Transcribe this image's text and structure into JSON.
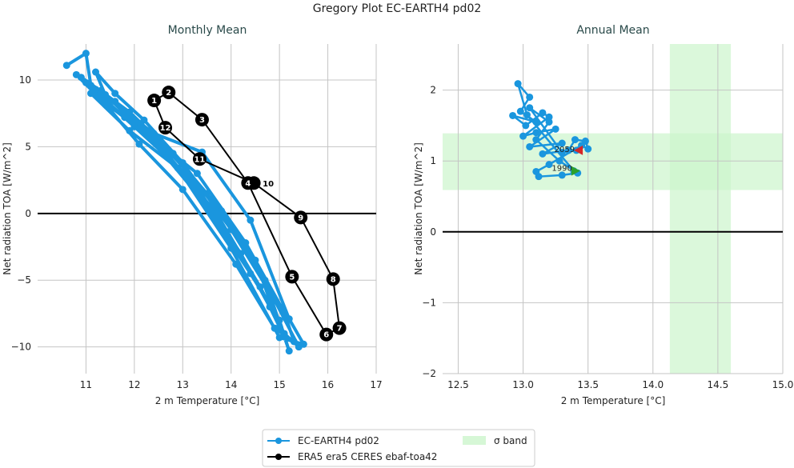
{
  "figure_title": "Gregory Plot EC-EARTH4 pd02",
  "colors": {
    "model": "#1a96de",
    "obs": "#000000",
    "band": "#ccf5cc",
    "start_marker": "#2ca02c",
    "end_marker": "#d62728"
  },
  "legend": {
    "placement": "bottom-center",
    "entries": [
      {
        "label": "EC-EARTH4 pd02",
        "color": "#1a96de"
      },
      {
        "label": "ERA5 era5 CERES ebaf-toa42",
        "color": "#000000"
      },
      {
        "label": "σ band",
        "color": "#ccf5cc"
      }
    ]
  },
  "chart_data": [
    {
      "type": "line",
      "title": "Monthly Mean",
      "xlabel": "2 m Temperature [°C]",
      "ylabel": "Net radiation TOA [W/m^2]",
      "xlim": [
        10.0,
        17.0
      ],
      "ylim": [
        -12.0,
        12.7
      ],
      "xticks": [
        11,
        12,
        13,
        14,
        15,
        16,
        17
      ],
      "yticks": [
        -10,
        -5,
        0,
        5,
        10
      ],
      "grid": true,
      "zero_line": 0,
      "series": [
        {
          "name": "EC-EARTH4 pd02",
          "markers": true,
          "points": [
            [
              10.6,
              11.1
            ],
            [
              11.0,
              12.0
            ],
            [
              11.1,
              9.6
            ],
            [
              11.6,
              8.4
            ],
            [
              12.5,
              5.5
            ],
            [
              13.5,
              1.5
            ],
            [
              14.5,
              -3.5
            ],
            [
              15.0,
              -8.5
            ],
            [
              14.8,
              -7.0
            ],
            [
              14.2,
              -3.0
            ],
            [
              13.2,
              2.5
            ],
            [
              12.0,
              6.5
            ],
            [
              11.3,
              8.8
            ],
            [
              10.9,
              10.2
            ],
            [
              11.3,
              9.2
            ],
            [
              11.9,
              7.6
            ],
            [
              12.8,
              4.5
            ],
            [
              13.8,
              0.2
            ],
            [
              14.7,
              -5.0
            ],
            [
              15.2,
              -10.3
            ],
            [
              15.0,
              -8.0
            ],
            [
              14.4,
              -4.5
            ],
            [
              13.4,
              1.0
            ],
            [
              12.3,
              5.8
            ],
            [
              11.5,
              8.0
            ],
            [
              11.2,
              10.6
            ],
            [
              11.6,
              9.0
            ],
            [
              12.2,
              7.0
            ],
            [
              13.0,
              3.8
            ],
            [
              14.0,
              -1.2
            ],
            [
              14.9,
              -6.5
            ],
            [
              15.4,
              -10.0
            ],
            [
              15.1,
              -9.0
            ],
            [
              14.6,
              -5.5
            ],
            [
              13.7,
              0.0
            ],
            [
              12.6,
              4.8
            ],
            [
              11.8,
              7.2
            ],
            [
              11.0,
              9.8
            ],
            [
              11.4,
              8.9
            ],
            [
              12.0,
              6.8
            ],
            [
              13.3,
              3.0
            ],
            [
              14.3,
              -2.2
            ],
            [
              15.1,
              -7.4
            ],
            [
              15.3,
              -9.6
            ],
            [
              14.9,
              -8.6
            ],
            [
              14.1,
              -3.8
            ],
            [
              13.0,
              1.8
            ],
            [
              12.1,
              5.2
            ],
            [
              11.4,
              8.2
            ],
            [
              10.8,
              10.4
            ],
            [
              11.2,
              9.3
            ],
            [
              12.4,
              6.0
            ],
            [
              13.4,
              4.6
            ],
            [
              14.4,
              -0.5
            ],
            [
              15.2,
              -7.9
            ],
            [
              15.5,
              -9.8
            ],
            [
              15.0,
              -9.3
            ],
            [
              14.0,
              -2.6
            ],
            [
              12.9,
              3.4
            ],
            [
              11.9,
              6.2
            ],
            [
              11.1,
              9.0
            ]
          ]
        },
        {
          "name": "ERA5 era5 CERES ebaf-toa42",
          "markers": true,
          "month_labels": [
            "1",
            "2",
            "3",
            "4",
            "5",
            "6",
            "7",
            "8",
            "9",
            "10",
            "11",
            "12"
          ],
          "points": [
            [
              12.41,
              8.47
            ],
            [
              12.71,
              9.07
            ],
            [
              13.4,
              7.03
            ],
            [
              14.35,
              2.28
            ],
            [
              15.26,
              -4.74
            ],
            [
              15.97,
              -9.07
            ],
            [
              16.24,
              -8.59
            ],
            [
              16.11,
              -4.92
            ],
            [
              15.44,
              -0.3
            ],
            [
              14.47,
              2.28
            ],
            [
              13.35,
              4.08
            ],
            [
              12.64,
              6.43
            ]
          ]
        }
      ]
    },
    {
      "type": "line",
      "title": "Annual Mean",
      "xlabel": "2 m Temperature [°C]",
      "ylabel": "Net radiation TOA [W/m^2]",
      "xlim": [
        12.38,
        15.0
      ],
      "ylim": [
        -2.0,
        2.65
      ],
      "xticks": [
        12.5,
        13.0,
        13.5,
        14.0,
        14.5,
        15.0
      ],
      "xtick_labels": [
        "12.5",
        "13.0",
        "13.5",
        "14.0",
        "14.5",
        "15.0"
      ],
      "yticks": [
        -2,
        -1,
        0,
        1,
        2
      ],
      "grid": true,
      "zero_line": 0,
      "sigma_band": {
        "y_range": [
          0.59,
          1.39
        ],
        "x_range": [
          14.13,
          14.6
        ]
      },
      "start_label": "1990",
      "end_label": "2059",
      "series": [
        {
          "name": "EC-EARTH4 pd02",
          "markers": true,
          "points": [
            [
              13.39,
              0.86
            ],
            [
              13.03,
              1.65
            ],
            [
              12.96,
              2.09
            ],
            [
              13.05,
              1.9
            ],
            [
              12.98,
              1.7
            ],
            [
              13.1,
              1.55
            ],
            [
              12.92,
              1.64
            ],
            [
              13.02,
              1.5
            ],
            [
              13.15,
              1.68
            ],
            [
              13.2,
              1.62
            ],
            [
              13.0,
              1.35
            ],
            [
              13.1,
              1.4
            ],
            [
              13.25,
              1.45
            ],
            [
              13.05,
              1.2
            ],
            [
              13.3,
              1.25
            ],
            [
              13.15,
              1.1
            ],
            [
              13.35,
              1.15
            ],
            [
              13.4,
              1.3
            ],
            [
              13.48,
              1.28
            ],
            [
              13.5,
              1.17
            ],
            [
              13.45,
              1.22
            ],
            [
              13.2,
              0.95
            ],
            [
              13.1,
              0.85
            ],
            [
              13.12,
              0.78
            ],
            [
              13.3,
              0.8
            ],
            [
              13.42,
              0.83
            ],
            [
              13.28,
              1.0
            ],
            [
              13.1,
              1.3
            ],
            [
              13.2,
              1.55
            ],
            [
              13.05,
              1.75
            ],
            [
              13.3,
              1.12
            ],
            [
              13.41,
              1.15
            ]
          ]
        }
      ]
    }
  ]
}
